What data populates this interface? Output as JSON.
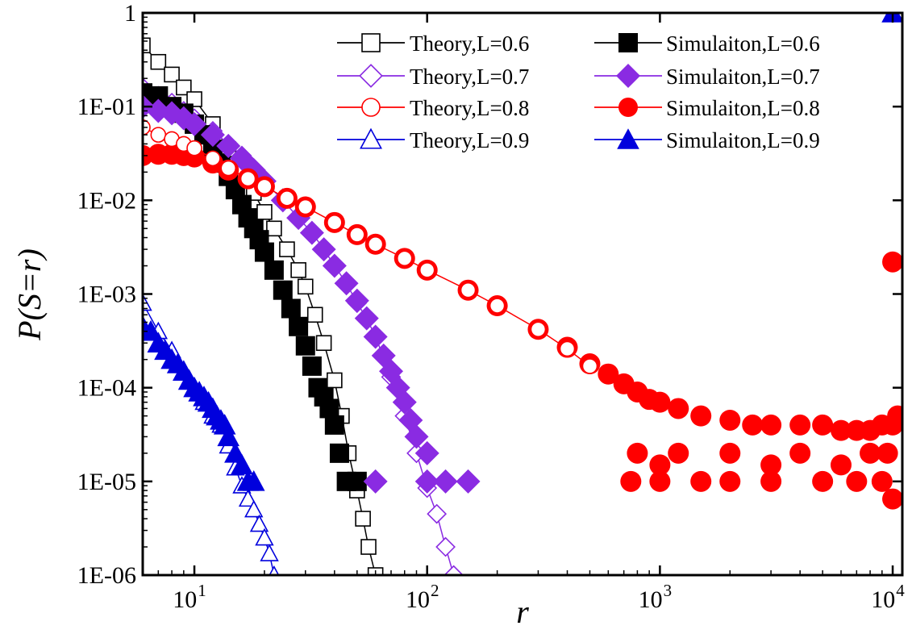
{
  "chart_data": {
    "type": "scatter",
    "xlabel": "r",
    "ylabel": "P(S=r)",
    "xscale": "log",
    "yscale": "log",
    "xlim": [
      6,
      11000
    ],
    "ylim": [
      1e-06,
      1
    ],
    "x_ticks": [
      {
        "value": 10,
        "base": "10",
        "exp": "1"
      },
      {
        "value": 100,
        "base": "10",
        "exp": "2"
      },
      {
        "value": 1000,
        "base": "10",
        "exp": "3"
      },
      {
        "value": 10000,
        "base": "10",
        "exp": "4"
      }
    ],
    "y_ticks": [
      {
        "value": 1,
        "label": "1"
      },
      {
        "value": 0.1,
        "label": "1E-01"
      },
      {
        "value": 0.01,
        "label": "1E-02"
      },
      {
        "value": 0.001,
        "label": "1E-03"
      },
      {
        "value": 0.0001,
        "label": "1E-04"
      },
      {
        "value": 1e-05,
        "label": "1E-05"
      },
      {
        "value": 1e-06,
        "label": "1E-06"
      }
    ],
    "grid": false,
    "legend_position": "top-right",
    "series": [
      {
        "name": "Theory,L=0.6",
        "kind": "theory",
        "marker": "square",
        "color": "#000000",
        "x": [
          6,
          7,
          8,
          9,
          10,
          12,
          14,
          16,
          18,
          20,
          22,
          25,
          28,
          30,
          33,
          36,
          40,
          43,
          46,
          50,
          53,
          56,
          60
        ],
        "y": [
          0.45,
          0.3,
          0.22,
          0.16,
          0.12,
          0.065,
          0.035,
          0.02,
          0.012,
          0.0075,
          0.005,
          0.003,
          0.0018,
          0.0012,
          0.0006,
          0.0003,
          0.00012,
          5e-05,
          2e-05,
          8e-06,
          4e-06,
          2e-06,
          1e-06
        ]
      },
      {
        "name": "Theory,L=0.7",
        "kind": "theory",
        "marker": "diamond",
        "color": "#8a2be2",
        "x": [
          6,
          7,
          8,
          9,
          10,
          12,
          14,
          16,
          18,
          20,
          24,
          28,
          32,
          36,
          40,
          45,
          50,
          55,
          60,
          70,
          80,
          90,
          100,
          110,
          120,
          130
        ],
        "y": [
          0.16,
          0.13,
          0.11,
          0.09,
          0.075,
          0.055,
          0.04,
          0.03,
          0.022,
          0.016,
          0.01,
          0.0065,
          0.0045,
          0.003,
          0.002,
          0.0013,
          0.0008,
          0.00055,
          0.00035,
          0.00013,
          5e-05,
          2e-05,
          8.5e-06,
          4.5e-06,
          2e-06,
          1e-06
        ]
      },
      {
        "name": "Theory,L=0.8",
        "kind": "theory",
        "marker": "circle",
        "color": "#ff0000",
        "x": [
          6,
          7,
          8,
          9,
          10,
          12,
          14,
          17,
          20,
          25,
          30,
          40,
          50,
          60,
          80,
          100,
          150,
          200,
          300,
          400,
          500
        ],
        "y": [
          0.06,
          0.05,
          0.045,
          0.04,
          0.036,
          0.028,
          0.022,
          0.017,
          0.014,
          0.0105,
          0.0085,
          0.0058,
          0.0043,
          0.0034,
          0.0024,
          0.0018,
          0.0011,
          0.00075,
          0.00042,
          0.00026,
          0.00017
        ]
      },
      {
        "name": "Theory,L=0.9",
        "kind": "theory",
        "marker": "triangle",
        "color": "#0000dd",
        "x": [
          6,
          7,
          8,
          9,
          10,
          11,
          12,
          13,
          14,
          15,
          16,
          17,
          18,
          19,
          20,
          21,
          22
        ],
        "y": [
          0.0008,
          0.0004,
          0.00025,
          0.00015,
          0.0001,
          7e-05,
          5e-05,
          4e-05,
          2.4e-05,
          1.4e-05,
          9e-06,
          6.5e-06,
          5e-06,
          3.5e-06,
          2.5e-06,
          1.7e-06,
          1e-06
        ]
      },
      {
        "name": "Simulaiton,L=0.6",
        "kind": "simulation",
        "marker": "square",
        "color": "#000000",
        "x": [
          6,
          7,
          8,
          9,
          10,
          11,
          12,
          13,
          14,
          15,
          16,
          17,
          18,
          19,
          20,
          22,
          24,
          26,
          28,
          30,
          32,
          34,
          36,
          38,
          40,
          42,
          45,
          50
        ],
        "y": [
          0.14,
          0.13,
          0.1,
          0.085,
          0.065,
          0.05,
          0.035,
          0.025,
          0.018,
          0.013,
          0.009,
          0.0065,
          0.005,
          0.0038,
          0.0028,
          0.0018,
          0.0011,
          0.0007,
          0.00045,
          0.00028,
          0.00017,
          0.0001,
          8e-05,
          6e-05,
          4e-05,
          2e-05,
          1e-05,
          1e-05
        ]
      },
      {
        "name": "Simulaiton,L=0.7",
        "kind": "simulation",
        "marker": "diamond",
        "color": "#8a2be2",
        "x": [
          6,
          7,
          8,
          9,
          10,
          12,
          14,
          16,
          18,
          20,
          24,
          28,
          32,
          36,
          40,
          45,
          50,
          55,
          60,
          65,
          70,
          75,
          80,
          85,
          90,
          100,
          120,
          150,
          60,
          100
        ],
        "y": [
          0.1,
          0.09,
          0.085,
          0.075,
          0.065,
          0.05,
          0.038,
          0.028,
          0.021,
          0.016,
          0.01,
          0.0065,
          0.0045,
          0.003,
          0.002,
          0.0013,
          0.00085,
          0.00055,
          0.00035,
          0.00022,
          0.00015,
          0.0001,
          7e-05,
          4.5e-05,
          3e-05,
          2e-05,
          1e-05,
          1e-05,
          1e-05,
          1e-05
        ]
      },
      {
        "name": "Simulaiton,L=0.8",
        "kind": "simulation",
        "marker": "circle",
        "color": "#ff0000",
        "x": [
          6,
          7,
          8,
          9,
          10,
          12,
          14,
          17,
          20,
          25,
          30,
          40,
          50,
          60,
          80,
          100,
          150,
          200,
          300,
          400,
          500,
          600,
          700,
          800,
          900,
          1000,
          1200,
          1500,
          2000,
          2500,
          3000,
          4000,
          5000,
          6000,
          7000,
          8000,
          9000,
          10000,
          10500,
          750,
          1000,
          1500,
          2000,
          3000,
          5000,
          7000,
          9000,
          10000,
          800,
          1200,
          2000,
          4000,
          8000,
          1000,
          3000,
          6000,
          9500,
          10000
        ],
        "y": [
          0.03,
          0.031,
          0.031,
          0.03,
          0.029,
          0.025,
          0.021,
          0.017,
          0.014,
          0.0105,
          0.0085,
          0.0058,
          0.0043,
          0.0034,
          0.0024,
          0.0018,
          0.0011,
          0.00075,
          0.00042,
          0.00027,
          0.00018,
          0.00014,
          0.00011,
          9e-05,
          7.5e-05,
          7e-05,
          6e-05,
          5e-05,
          4.5e-05,
          4e-05,
          4e-05,
          4e-05,
          4e-05,
          3.5e-05,
          3.5e-05,
          3.5e-05,
          4e-05,
          4e-05,
          5e-05,
          1e-05,
          1e-05,
          1e-05,
          1e-05,
          1e-05,
          1e-05,
          1e-05,
          1e-05,
          6.5e-06,
          2e-05,
          2e-05,
          2e-05,
          2e-05,
          2e-05,
          1.5e-05,
          1.5e-05,
          1.5e-05,
          2e-05,
          0.0022
        ]
      },
      {
        "name": "Simulaiton,L=0.9",
        "kind": "simulation",
        "marker": "triangle",
        "color": "#0000dd",
        "x": [
          6,
          6.5,
          7,
          7.5,
          8,
          8.5,
          9,
          9.5,
          10,
          10.5,
          11,
          11.5,
          12,
          12.5,
          13,
          13.5,
          14,
          15,
          16,
          17,
          18,
          10000
        ],
        "y": [
          0.00045,
          0.0004,
          0.0003,
          0.00025,
          0.0002,
          0.00018,
          0.00015,
          0.00012,
          0.0001,
          9e-05,
          8e-05,
          7e-05,
          6e-05,
          5e-05,
          4.5e-05,
          4e-05,
          3e-05,
          2e-05,
          1.5e-05,
          1e-05,
          1e-05,
          1
        ]
      }
    ]
  }
}
